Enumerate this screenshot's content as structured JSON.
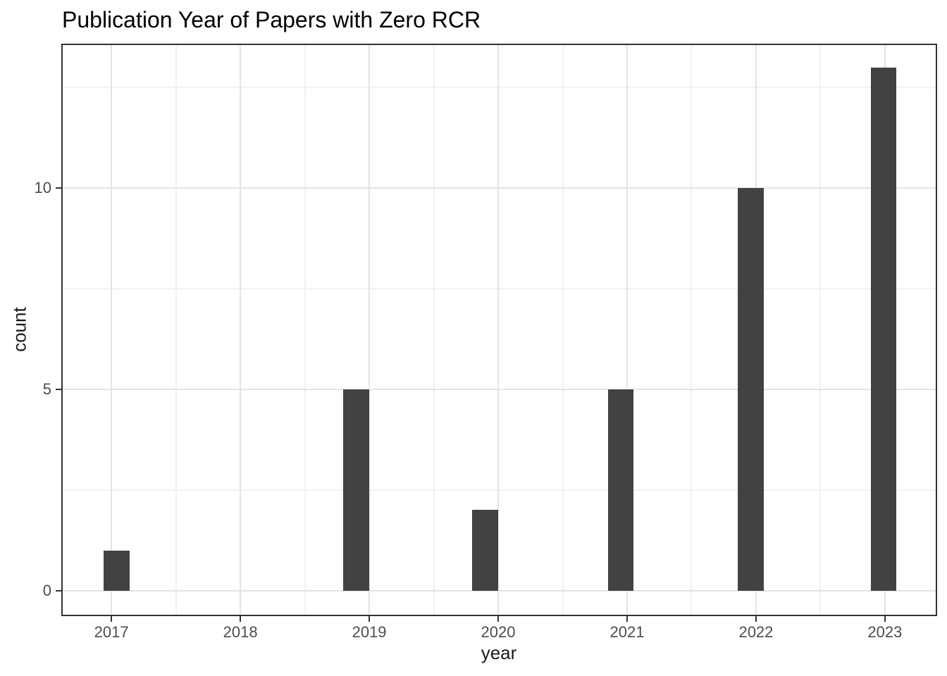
{
  "chart_data": {
    "type": "bar",
    "title": "Publication Year of Papers with Zero RCR",
    "xlabel": "year",
    "ylabel": "count",
    "categories": [
      "2017",
      "2018",
      "2019",
      "2020",
      "2021",
      "2022",
      "2023"
    ],
    "values": [
      1,
      0,
      5,
      2,
      5,
      10,
      13
    ],
    "bars": [
      {
        "center": 2017.04,
        "count": 1
      },
      {
        "center": 2018.9,
        "count": 5
      },
      {
        "center": 2019.9,
        "count": 2
      },
      {
        "center": 2020.95,
        "count": 5
      },
      {
        "center": 2021.96,
        "count": 10
      },
      {
        "center": 2022.99,
        "count": 13
      }
    ],
    "bar_width": 0.2,
    "x_ticks": [
      2017,
      2018,
      2019,
      2020,
      2021,
      2022,
      2023
    ],
    "x_minor_ticks": [
      2017.5,
      2018.5,
      2019.5,
      2020.5,
      2021.5,
      2022.5
    ],
    "y_ticks": [
      0,
      5,
      10
    ],
    "y_minor_ticks": [
      2.5,
      7.5,
      12.5
    ],
    "xlim": [
      2016.611,
      2023.405
    ],
    "ylim": [
      -0.636,
      13.59
    ],
    "grid": true,
    "legend": "none",
    "colors": {
      "bar": "#424242",
      "panel_border": "#333333",
      "grid_major": "#e4e4e4",
      "grid_minor": "#f1f1f1",
      "tick_mark": "#333333",
      "tick_label": "#4d4d4d",
      "axis_title": "#1a1a1a",
      "title": "#000000",
      "background": "#ffffff"
    }
  }
}
